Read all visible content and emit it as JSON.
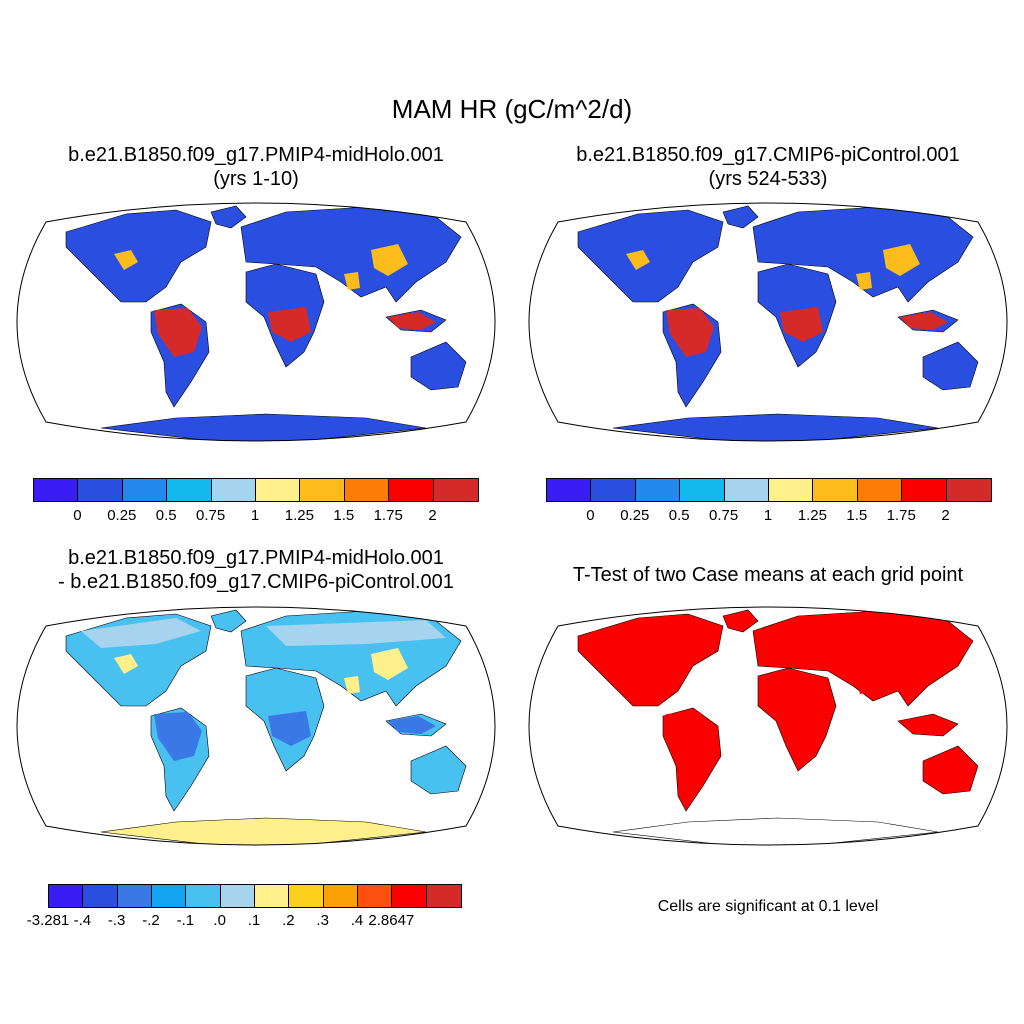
{
  "title": "MAM HR (gC/m^2/d)",
  "panels": {
    "p1": {
      "title_line1": "b.e21.B1850.f09_g17.PMIP4-midHolo.001",
      "title_line2": "(yrs 1-10)"
    },
    "p2": {
      "title_line1": "b.e21.B1850.f09_g17.CMIP6-piControl.001",
      "title_line2": "(yrs 524-533)"
    },
    "p3": {
      "title_line1": "b.e21.B1850.f09_g17.PMIP4-midHolo.001",
      "title_line2": "- b.e21.B1850.f09_g17.CMIP6-piControl.001"
    },
    "p4": {
      "title_line1": "T-Test of two Case means at each grid point",
      "note": "Cells are significant at 0.1 level"
    }
  },
  "colorbars": {
    "abs": {
      "colors": [
        "#3a1cf4",
        "#2a4fe0",
        "#2288f0",
        "#12b8ee",
        "#a6d4ee",
        "#fff08c",
        "#fcbc1c",
        "#fc7c08",
        "#fc0000",
        "#d42a2a"
      ],
      "labels": [
        "0",
        "0.25",
        "0.5",
        "0.75",
        "1",
        "1.25",
        "1.5",
        "1.75",
        "2"
      ]
    },
    "diff": {
      "colors": [
        "#3a1cf4",
        "#2a4fe0",
        "#3a78e6",
        "#12a4f0",
        "#48c0f0",
        "#a6d4ee",
        "#fff08c",
        "#fcd01c",
        "#fca008",
        "#fc5010",
        "#fc0000",
        "#d42a2a"
      ],
      "labels": [
        "-3.281",
        "-.4",
        "-.3",
        "-.2",
        "-.1",
        ".0",
        ".1",
        ".2",
        ".3",
        ".4",
        "2.8647"
      ]
    }
  },
  "map_colors": {
    "p1": {
      "ocean": "#ffffff",
      "land": "#2a4fe0",
      "boreal": "#2a4fe0",
      "tropics": "#d42a2a",
      "hotspot": "#fcbc1c",
      "antarctica": "#2a4fe0"
    },
    "p2": {
      "ocean": "#ffffff",
      "land": "#2a4fe0",
      "boreal": "#2a4fe0",
      "tropics": "#d42a2a",
      "hotspot": "#fcbc1c",
      "antarctica": "#2a4fe0"
    },
    "p3": {
      "ocean": "#ffffff",
      "land": "#48c0f0",
      "boreal": "#a6d4ee",
      "tropics": "#3a78e6",
      "hotspot": "#fff08c",
      "antarctica": "#fff08c"
    },
    "p4": {
      "ocean": "#ffffff",
      "land": "#fc0000",
      "boreal": "#fc0000",
      "tropics": "#fc0000",
      "hotspot": "#fc0000",
      "antarctica": "#ffffff"
    }
  }
}
